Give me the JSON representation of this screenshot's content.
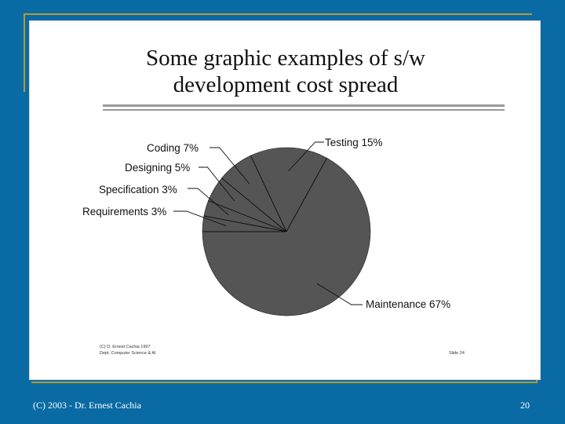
{
  "colors": {
    "background": "#0a6ba4",
    "accent_line": "#b59a2e",
    "slice_fill": "#555555"
  },
  "slide": {
    "title_line1": "Some graphic examples of s/w",
    "title_line2": "development cost spread"
  },
  "inner_footer": {
    "left_line1": "(C) D. Ernest Cachia 1997",
    "left_line2": "Dept. Computer Science & AI",
    "right": "Slide 24"
  },
  "footer": {
    "left": "(C) 2003 - Dr. Ernest Cachia",
    "right": "20"
  },
  "chart_data": {
    "type": "pie",
    "title": "",
    "slices": [
      {
        "label": "Requirements",
        "value": 3
      },
      {
        "label": "Specification",
        "value": 3
      },
      {
        "label": "Designing",
        "value": 5
      },
      {
        "label": "Coding",
        "value": 7
      },
      {
        "label": "Testing",
        "value": 15
      },
      {
        "label": "Maintenance",
        "value": 67
      }
    ],
    "slice_labels": [
      "Requirements 3%",
      "Specification 3%",
      "Designing 5%",
      "Coding 7%",
      "Testing 15%",
      "Maintenance 67%"
    ]
  }
}
